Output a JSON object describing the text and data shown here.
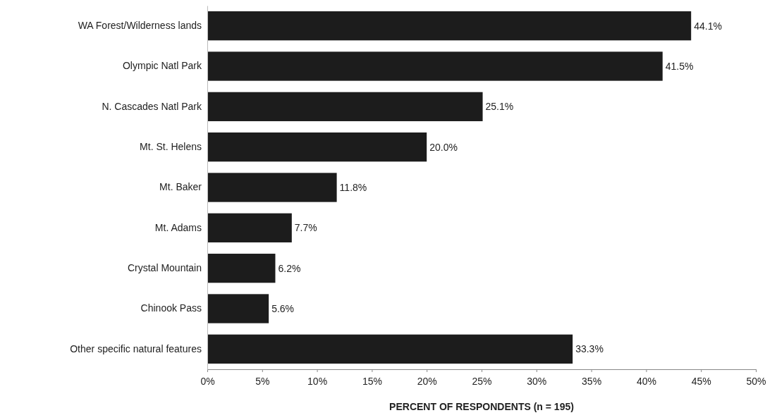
{
  "chart_data": {
    "type": "bar",
    "orientation": "horizontal",
    "xlabel": "PERCENT OF RESPONDENTS (n = 195)",
    "categories": [
      "WA Forest/Wilderness lands",
      "Olympic Natl Park",
      "N. Cascades Natl Park",
      "Mt. St. Helens",
      "Mt. Baker",
      "Mt. Adams",
      "Crystal Mountain",
      "Chinook Pass",
      "Other specific natural features"
    ],
    "values": [
      44.1,
      41.5,
      25.1,
      20.0,
      11.8,
      7.7,
      6.2,
      5.6,
      33.3
    ],
    "value_labels": [
      "44.1%",
      "41.5%",
      "25.1%",
      "20.0%",
      "11.8%",
      "7.7%",
      "6.2%",
      "5.6%",
      "33.3%"
    ],
    "color": "#1c1c1c",
    "xlim": [
      0,
      50
    ],
    "xticks": [
      {
        "value": 0,
        "label": "0%"
      },
      {
        "value": 5,
        "label": "5%"
      },
      {
        "value": 10,
        "label": "10%"
      },
      {
        "value": 15,
        "label": "15%"
      },
      {
        "value": 20,
        "label": "20%"
      },
      {
        "value": 25,
        "label": "25%"
      },
      {
        "value": 30,
        "label": "30%"
      },
      {
        "value": 35,
        "label": "35%"
      },
      {
        "value": 40,
        "label": "40%"
      },
      {
        "value": 45,
        "label": "45%"
      },
      {
        "value": 50,
        "label": "50%"
      }
    ],
    "grid": false
  }
}
